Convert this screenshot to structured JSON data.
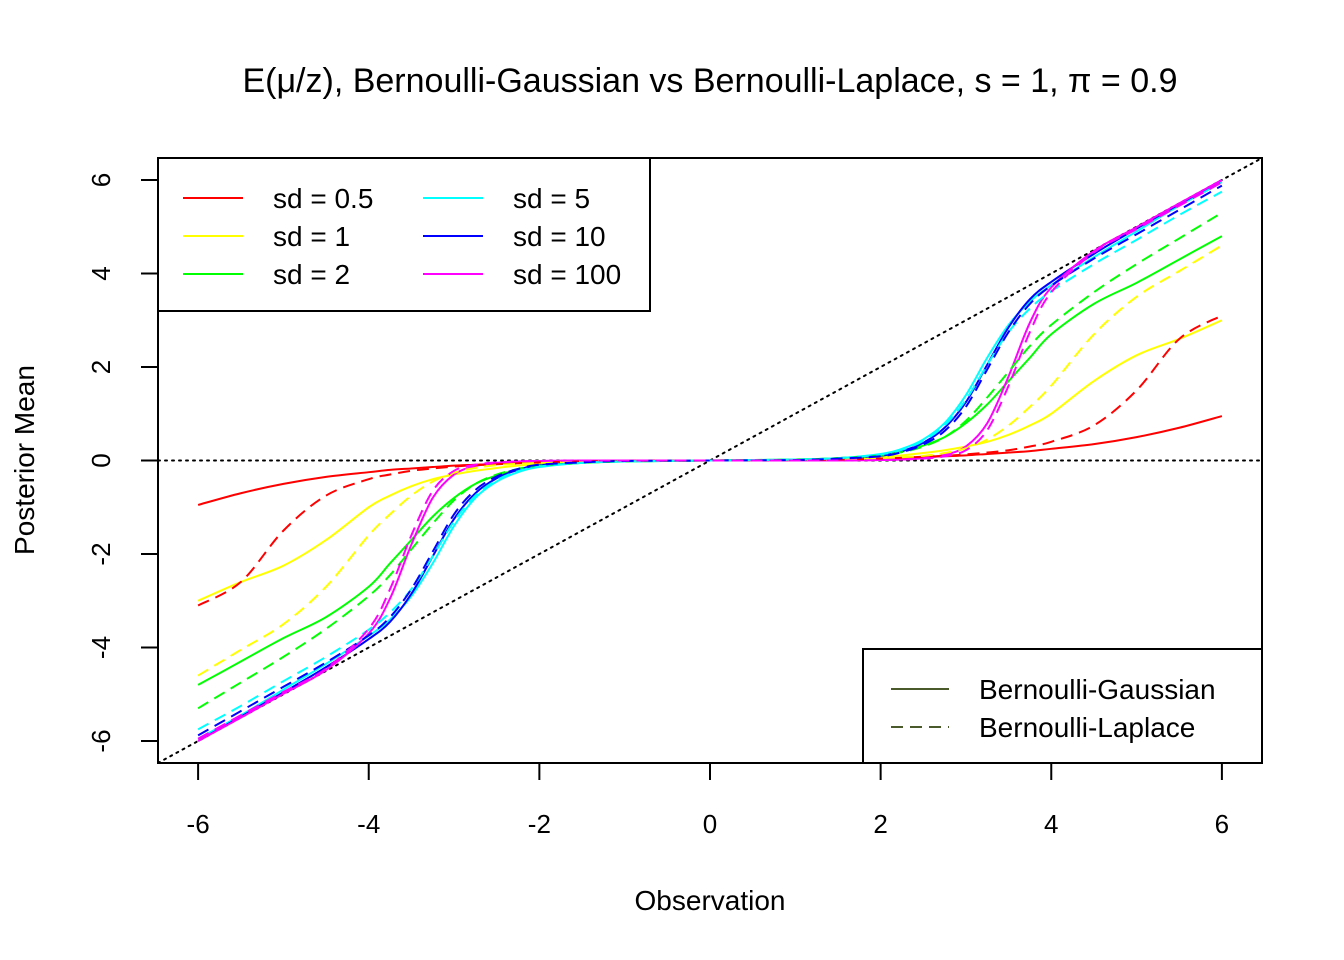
{
  "chart_data": {
    "type": "line",
    "title": "E(μ/z), Bernoulli-Gaussian vs Bernoulli-Laplace, s = 1, π = 0.9",
    "xlabel": "Observation",
    "ylabel": "Posterior Mean",
    "xlim": [
      -6.47,
      6.47
    ],
    "ylim": [
      -6.47,
      6.47
    ],
    "xticks": [
      -6,
      -4,
      -2,
      0,
      2,
      4,
      6
    ],
    "yticks": [
      -6,
      -4,
      -2,
      0,
      2,
      4,
      6
    ],
    "x": [
      -6,
      -5.5,
      -5,
      -4.5,
      -4,
      -3.75,
      -3.5,
      -3.25,
      -3,
      -2.75,
      -2.5,
      -2.25,
      -2,
      -1.5,
      -1,
      0,
      1,
      1.5,
      2,
      2.25,
      2.5,
      2.75,
      3,
      3.25,
      3.5,
      3.75,
      4,
      4.5,
      5,
      5.5,
      6
    ],
    "series": [
      {
        "name": "sd = 0.5",
        "model": "Bernoulli-Gaussian",
        "color": "#FF0000",
        "dash": "solid",
        "values": [
          -0.95,
          -0.7,
          -0.5,
          -0.35,
          -0.25,
          -0.2,
          -0.17,
          -0.14,
          -0.11,
          -0.09,
          -0.07,
          -0.05,
          -0.04,
          -0.02,
          -0.01,
          0,
          0.01,
          0.02,
          0.04,
          0.05,
          0.07,
          0.09,
          0.11,
          0.14,
          0.17,
          0.2,
          0.25,
          0.35,
          0.5,
          0.7,
          0.95
        ]
      },
      {
        "name": "sd = 1",
        "model": "Bernoulli-Gaussian",
        "color": "#FFFF00",
        "dash": "solid",
        "values": [
          -3.0,
          -2.6,
          -2.25,
          -1.7,
          -1.0,
          -0.75,
          -0.55,
          -0.4,
          -0.3,
          -0.22,
          -0.16,
          -0.11,
          -0.08,
          -0.04,
          -0.01,
          0,
          0.01,
          0.04,
          0.08,
          0.11,
          0.16,
          0.22,
          0.3,
          0.4,
          0.55,
          0.75,
          1.0,
          1.7,
          2.25,
          2.6,
          3.0
        ]
      },
      {
        "name": "sd = 2",
        "model": "Bernoulli-Gaussian",
        "color": "#00FF00",
        "dash": "solid",
        "values": [
          -4.8,
          -4.3,
          -3.8,
          -3.35,
          -2.7,
          -2.2,
          -1.7,
          -1.2,
          -0.8,
          -0.5,
          -0.32,
          -0.2,
          -0.12,
          -0.05,
          -0.02,
          0,
          0.02,
          0.05,
          0.12,
          0.2,
          0.32,
          0.5,
          0.8,
          1.2,
          1.7,
          2.2,
          2.7,
          3.35,
          3.8,
          4.3,
          4.8
        ]
      },
      {
        "name": "sd = 5",
        "model": "Bernoulli-Gaussian",
        "color": "#00FFFF",
        "dash": "solid",
        "values": [
          -5.95,
          -5.45,
          -4.9,
          -4.35,
          -3.75,
          -3.4,
          -2.9,
          -2.2,
          -1.4,
          -0.8,
          -0.45,
          -0.25,
          -0.14,
          -0.05,
          -0.02,
          0,
          0.02,
          0.05,
          0.14,
          0.25,
          0.45,
          0.8,
          1.4,
          2.2,
          2.9,
          3.4,
          3.75,
          4.35,
          4.9,
          5.45,
          5.95
        ]
      },
      {
        "name": "sd = 10",
        "model": "Bernoulli-Gaussian",
        "color": "#0000FF",
        "dash": "solid",
        "values": [
          -6.0,
          -5.48,
          -4.96,
          -4.42,
          -3.82,
          -3.45,
          -2.85,
          -2.05,
          -1.25,
          -0.7,
          -0.38,
          -0.2,
          -0.1,
          -0.04,
          -0.01,
          0,
          0.01,
          0.04,
          0.1,
          0.2,
          0.38,
          0.7,
          1.25,
          2.05,
          2.85,
          3.45,
          3.82,
          4.42,
          4.96,
          5.48,
          6.0
        ]
      },
      {
        "name": "sd = 100",
        "model": "Bernoulli-Gaussian",
        "color": "#FF00FF",
        "dash": "solid",
        "values": [
          -6.0,
          -5.5,
          -4.99,
          -4.48,
          -3.7,
          -2.95,
          -1.8,
          -0.8,
          -0.3,
          -0.12,
          -0.05,
          -0.02,
          -0.01,
          0,
          0,
          0,
          0,
          0,
          0.01,
          0.02,
          0.05,
          0.12,
          0.3,
          0.8,
          1.8,
          2.95,
          3.7,
          4.48,
          4.99,
          5.5,
          6.0
        ]
      },
      {
        "name": "sd = 0.5",
        "model": "Bernoulli-Laplace",
        "color": "#FF0000",
        "dash": "dashed",
        "values": [
          -3.1,
          -2.6,
          -1.5,
          -0.75,
          -0.4,
          -0.3,
          -0.22,
          -0.17,
          -0.13,
          -0.1,
          -0.08,
          -0.06,
          -0.04,
          -0.02,
          -0.01,
          0,
          0.01,
          0.02,
          0.04,
          0.06,
          0.08,
          0.1,
          0.13,
          0.17,
          0.22,
          0.3,
          0.4,
          0.75,
          1.5,
          2.6,
          3.1
        ]
      },
      {
        "name": "sd = 1",
        "model": "Bernoulli-Laplace",
        "color": "#FFFF00",
        "dash": "dashed",
        "values": [
          -4.6,
          -4.05,
          -3.5,
          -2.7,
          -1.6,
          -1.15,
          -0.75,
          -0.45,
          -0.26,
          -0.16,
          -0.1,
          -0.07,
          -0.05,
          -0.02,
          -0.01,
          0,
          0.01,
          0.02,
          0.05,
          0.07,
          0.1,
          0.16,
          0.26,
          0.45,
          0.75,
          1.15,
          1.6,
          2.7,
          3.5,
          4.05,
          4.6
        ]
      },
      {
        "name": "sd = 2",
        "model": "Bernoulli-Laplace",
        "color": "#00FF00",
        "dash": "dashed",
        "values": [
          -5.3,
          -4.75,
          -4.2,
          -3.6,
          -2.9,
          -2.45,
          -1.9,
          -1.35,
          -0.85,
          -0.5,
          -0.3,
          -0.18,
          -0.11,
          -0.05,
          -0.02,
          0,
          0.02,
          0.05,
          0.11,
          0.18,
          0.3,
          0.5,
          0.85,
          1.35,
          1.9,
          2.45,
          2.9,
          3.6,
          4.2,
          4.75,
          5.3
        ]
      },
      {
        "name": "sd = 5",
        "model": "Bernoulli-Laplace",
        "color": "#00FFFF",
        "dash": "dashed",
        "values": [
          -5.75,
          -5.25,
          -4.72,
          -4.2,
          -3.62,
          -3.25,
          -2.75,
          -2.05,
          -1.3,
          -0.75,
          -0.42,
          -0.23,
          -0.13,
          -0.05,
          -0.02,
          0,
          0.02,
          0.05,
          0.13,
          0.23,
          0.42,
          0.75,
          1.3,
          2.05,
          2.75,
          3.25,
          3.62,
          4.2,
          4.72,
          5.25,
          5.75
        ]
      },
      {
        "name": "sd = 10",
        "model": "Bernoulli-Laplace",
        "color": "#0000FF",
        "dash": "dashed",
        "values": [
          -5.88,
          -5.36,
          -4.84,
          -4.32,
          -3.74,
          -3.35,
          -2.75,
          -1.95,
          -1.15,
          -0.63,
          -0.34,
          -0.18,
          -0.09,
          -0.04,
          -0.01,
          0,
          0.01,
          0.04,
          0.09,
          0.18,
          0.34,
          0.63,
          1.15,
          1.95,
          2.75,
          3.35,
          3.74,
          4.32,
          4.84,
          5.36,
          5.88
        ]
      },
      {
        "name": "sd = 100",
        "model": "Bernoulli-Laplace",
        "color": "#FF00FF",
        "dash": "dashed",
        "values": [
          -5.95,
          -5.45,
          -4.95,
          -4.45,
          -3.6,
          -2.75,
          -1.6,
          -0.65,
          -0.22,
          -0.09,
          -0.04,
          -0.02,
          -0.01,
          0,
          0,
          0,
          0,
          0,
          0.01,
          0.02,
          0.04,
          0.09,
          0.22,
          0.65,
          1.6,
          2.75,
          3.6,
          4.45,
          4.95,
          5.45,
          5.95
        ]
      }
    ],
    "reference_lines": [
      {
        "type": "hline",
        "y": 0,
        "style": "dotted",
        "color": "#000000"
      },
      {
        "type": "abline",
        "intercept": 0,
        "slope": 1,
        "style": "dotted",
        "color": "#000000"
      }
    ],
    "legends": [
      {
        "placement": "top-left",
        "entries": [
          {
            "label": "sd = 0.5",
            "color": "#FF0000",
            "dash": "solid"
          },
          {
            "label": "sd = 1",
            "color": "#FFFF00",
            "dash": "solid"
          },
          {
            "label": "sd = 2",
            "color": "#00FF00",
            "dash": "solid"
          },
          {
            "label": "sd = 5",
            "color": "#00FFFF",
            "dash": "solid"
          },
          {
            "label": "sd = 10",
            "color": "#0000FF",
            "dash": "solid"
          },
          {
            "label": "sd = 100",
            "color": "#FF00FF",
            "dash": "solid"
          }
        ]
      },
      {
        "placement": "bottom-right",
        "entries": [
          {
            "label": "Bernoulli-Gaussian",
            "color": "#4A5A2A",
            "dash": "solid"
          },
          {
            "label": "Bernoulli-Laplace",
            "color": "#4A5A2A",
            "dash": "dashed"
          }
        ]
      }
    ],
    "grid": false
  }
}
